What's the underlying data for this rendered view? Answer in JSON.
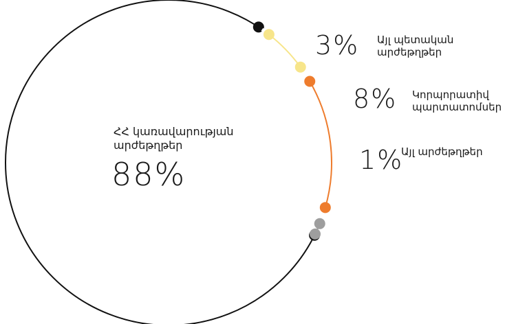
{
  "chart_data": {
    "type": "pie",
    "style": "outline-arc",
    "slices": [
      {
        "label": "ՀՀ կառավարության արժեթղթեր",
        "value": 88,
        "display": "88%",
        "color": "#111111"
      },
      {
        "label": "Այլ պետական արժեթղթեր",
        "value": 3,
        "display": "3%",
        "color": "#f7e58a"
      },
      {
        "label": "Կորպորատիվ պարտատոմսեր",
        "value": 8,
        "display": "8%",
        "color": "#ee7c2d"
      },
      {
        "label": "Այլ արժեթղթեր",
        "value": 1,
        "display": "1%",
        "color": "#9e9e9e"
      }
    ]
  },
  "labels": {
    "main": {
      "line1": "ՀՀ կառավարության",
      "line2": "արժեթղթեր",
      "pct": "88%"
    },
    "other_gov": {
      "line1": "Այլ պետական",
      "line2": "արժեթղթեր",
      "pct": "3%"
    },
    "corporate": {
      "line1": "Կորպորատիվ",
      "line2": "պարտատոմսեր",
      "pct": "8%"
    },
    "other": {
      "line1": "Այլ արժեթղթեր",
      "pct": "1%"
    }
  }
}
